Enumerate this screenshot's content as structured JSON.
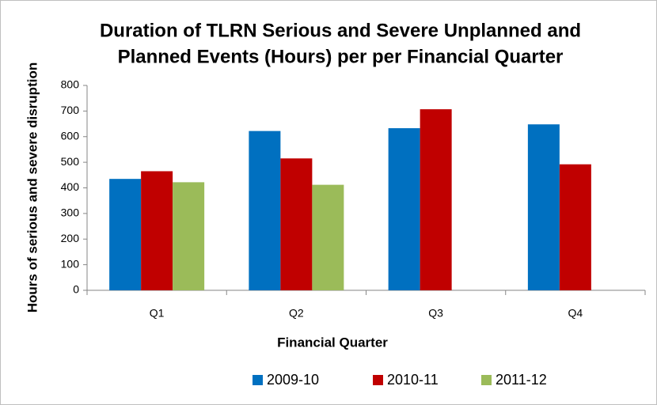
{
  "chart_data": {
    "type": "bar",
    "title": [
      "Duration of TLRN Serious and Severe Unplanned and",
      "Planned Events (Hours) per per  Financial Quarter"
    ],
    "x_label": "Financial Quarter",
    "y_label": "Hours of serious and severe disruption",
    "categories": [
      "Q1",
      "Q2",
      "Q3",
      "Q4"
    ],
    "series": [
      {
        "name": "2009-10",
        "color": "#0070c0",
        "values": [
          435,
          622,
          633,
          648
        ]
      },
      {
        "name": "2010-11",
        "color": "#c00000",
        "values": [
          465,
          515,
          707,
          492
        ]
      },
      {
        "name": "2011-12",
        "color": "#9bbb59",
        "values": [
          422,
          412,
          null,
          null
        ]
      }
    ],
    "ylim": [
      0,
      800
    ],
    "yticks": [
      0,
      100,
      200,
      300,
      400,
      500,
      600,
      700,
      800
    ],
    "grid": false,
    "legend": "bottom"
  }
}
